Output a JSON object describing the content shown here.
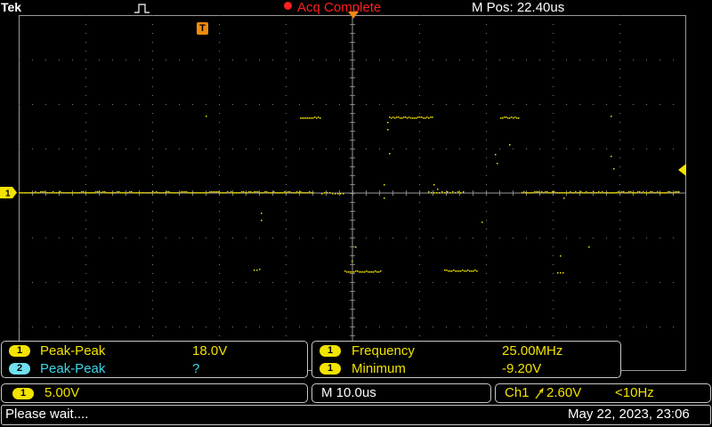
{
  "header": {
    "brand": "Tek",
    "acq_status": "Acq Complete",
    "m_pos": "M Pos: 22.40us"
  },
  "markers": {
    "trigger_position_label": "T",
    "ch1_marker_label": "1"
  },
  "measurements": {
    "left": [
      {
        "channel": "1",
        "name": "Peak-Peak",
        "value": "18.0V",
        "color": "#f2e300"
      },
      {
        "channel": "2",
        "name": "Peak-Peak",
        "value": "?",
        "color": "#3ed5e8"
      }
    ],
    "right": [
      {
        "channel": "1",
        "name": "Frequency",
        "value": "25.00MHz",
        "color": "#f2e300"
      },
      {
        "channel": "1",
        "name": "Minimum",
        "value": "-9.20V",
        "color": "#f2e300"
      }
    ]
  },
  "settings": {
    "ch1_channel": "1",
    "ch1_scale": "5.00V",
    "timebase": "M 10.0us",
    "trigger_source": "Ch1",
    "trigger_slope_icon": "rising-edge-icon",
    "trigger_level": "2.60V",
    "trigger_freq": "<10Hz"
  },
  "status": {
    "message": "Please wait....",
    "datetime": "May 22, 2023, 23:06"
  },
  "colors": {
    "ch1": "#f2e300",
    "ch2": "#3ed5e8",
    "acq": "#ff2020",
    "trigger_marker": "#f08a10"
  }
}
